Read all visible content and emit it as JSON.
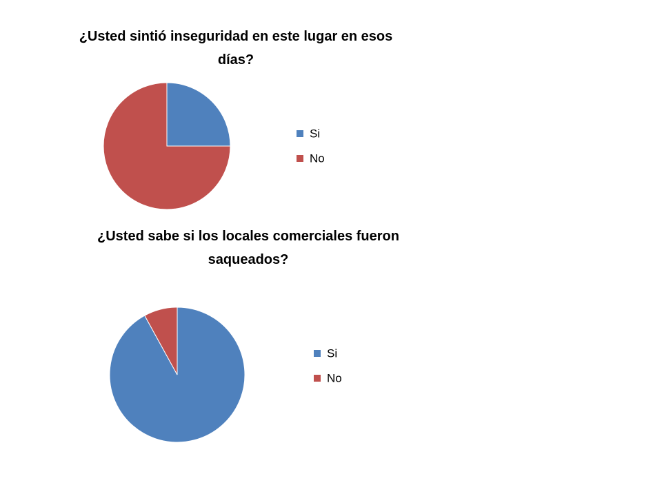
{
  "chart_data": [
    {
      "type": "pie",
      "title": "¿Usted sintió inseguridad en este lugar en esos días?",
      "categories": [
        "Si",
        "No"
      ],
      "values": [
        25,
        75
      ],
      "colors": [
        "#4f81bd",
        "#c0504d"
      ]
    },
    {
      "type": "pie",
      "title": "¿Usted sabe si los locales comerciales fueron saqueados?",
      "categories": [
        "Si",
        "No"
      ],
      "values": [
        92,
        8
      ],
      "colors": [
        "#4f81bd",
        "#c0504d"
      ]
    }
  ]
}
